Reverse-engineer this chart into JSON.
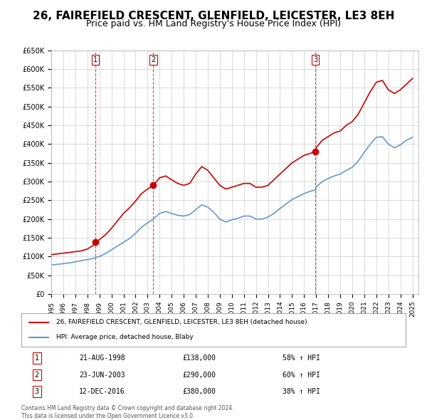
{
  "title": "26, FAIREFIELD CRESCENT, GLENFIELD, LEICESTER, LE3 8EH",
  "subtitle": "Price paid vs. HM Land Registry's House Price Index (HPI)",
  "title_fontsize": 11,
  "subtitle_fontsize": 9,
  "ylim": [
    0,
    650000
  ],
  "yticks": [
    0,
    50000,
    100000,
    150000,
    200000,
    250000,
    300000,
    350000,
    400000,
    450000,
    500000,
    550000,
    600000,
    650000
  ],
  "ytick_labels": [
    "£0",
    "£50K",
    "£100K",
    "£150K",
    "£200K",
    "£250K",
    "£300K",
    "£350K",
    "£400K",
    "£450K",
    "£500K",
    "£550K",
    "£600K",
    "£650K"
  ],
  "xlim_start": 1995.0,
  "xlim_end": 2025.5,
  "sale_color": "#cc0000",
  "hpi_color": "#6699cc",
  "sale_label": "26, FAIREFIELD CRESCENT, GLENFIELD, LEICESTER, LE3 8EH (detached house)",
  "hpi_label": "HPI: Average price, detached house, Blaby",
  "transactions": [
    {
      "date": 1998.64,
      "price": 138000,
      "label": "1"
    },
    {
      "date": 2003.48,
      "price": 290000,
      "label": "2"
    },
    {
      "date": 2016.95,
      "price": 380000,
      "label": "3"
    }
  ],
  "vline_dates": [
    1998.64,
    2003.48,
    2016.95
  ],
  "table_data": [
    [
      "1",
      "21-AUG-1998",
      "£138,000",
      "58% ↑ HPI"
    ],
    [
      "2",
      "23-JUN-2003",
      "£290,000",
      "60% ↑ HPI"
    ],
    [
      "3",
      "12-DEC-2016",
      "£380,000",
      "38% ↑ HPI"
    ]
  ],
  "footer": "Contains HM Land Registry data © Crown copyright and database right 2024.\nThis data is licensed under the Open Government Licence v3.0.",
  "background_color": "#ffffff",
  "grid_color": "#cccccc",
  "sale_line": {
    "x": [
      1995.0,
      1995.5,
      1996.0,
      1996.5,
      1997.0,
      1997.5,
      1998.0,
      1998.5,
      1998.64,
      1999.0,
      1999.5,
      2000.0,
      2000.5,
      2001.0,
      2001.5,
      2002.0,
      2002.5,
      2003.0,
      2003.48,
      2004.0,
      2004.5,
      2005.0,
      2005.5,
      2006.0,
      2006.5,
      2007.0,
      2007.5,
      2008.0,
      2008.5,
      2009.0,
      2009.5,
      2010.0,
      2010.5,
      2011.0,
      2011.5,
      2012.0,
      2012.5,
      2013.0,
      2013.5,
      2014.0,
      2014.5,
      2015.0,
      2015.5,
      2016.0,
      2016.5,
      2016.95,
      2017.0,
      2017.5,
      2018.0,
      2018.5,
      2019.0,
      2019.5,
      2020.0,
      2020.5,
      2021.0,
      2021.5,
      2022.0,
      2022.5,
      2023.0,
      2023.5,
      2024.0,
      2024.5,
      2025.0
    ],
    "y": [
      105000,
      107000,
      109000,
      111000,
      113000,
      115000,
      120000,
      130000,
      138000,
      145000,
      158000,
      175000,
      195000,
      215000,
      230000,
      248000,
      268000,
      280000,
      290000,
      310000,
      315000,
      305000,
      295000,
      290000,
      295000,
      320000,
      340000,
      330000,
      310000,
      290000,
      280000,
      285000,
      290000,
      295000,
      295000,
      285000,
      285000,
      290000,
      305000,
      320000,
      335000,
      350000,
      360000,
      370000,
      375000,
      380000,
      390000,
      410000,
      420000,
      430000,
      435000,
      450000,
      460000,
      480000,
      510000,
      540000,
      565000,
      570000,
      545000,
      535000,
      545000,
      560000,
      575000
    ]
  },
  "hpi_line": {
    "x": [
      1995.0,
      1995.5,
      1996.0,
      1996.5,
      1997.0,
      1997.5,
      1998.0,
      1998.5,
      1998.64,
      1999.0,
      1999.5,
      2000.0,
      2000.5,
      2001.0,
      2001.5,
      2002.0,
      2002.5,
      2003.0,
      2003.48,
      2004.0,
      2004.5,
      2005.0,
      2005.5,
      2006.0,
      2006.5,
      2007.0,
      2007.5,
      2008.0,
      2008.5,
      2009.0,
      2009.5,
      2010.0,
      2010.5,
      2011.0,
      2011.5,
      2012.0,
      2012.5,
      2013.0,
      2013.5,
      2014.0,
      2014.5,
      2015.0,
      2015.5,
      2016.0,
      2016.5,
      2016.95,
      2017.0,
      2017.5,
      2018.0,
      2018.5,
      2019.0,
      2019.5,
      2020.0,
      2020.5,
      2021.0,
      2021.5,
      2022.0,
      2022.5,
      2023.0,
      2023.5,
      2024.0,
      2024.5,
      2025.0
    ],
    "y": [
      78000,
      79000,
      81000,
      83000,
      86000,
      89000,
      92000,
      95000,
      97000,
      100000,
      108000,
      118000,
      128000,
      138000,
      148000,
      162000,
      178000,
      190000,
      200000,
      215000,
      220000,
      215000,
      210000,
      208000,
      212000,
      225000,
      238000,
      232000,
      218000,
      200000,
      192000,
      198000,
      202000,
      208000,
      208000,
      200000,
      200000,
      205000,
      215000,
      228000,
      240000,
      252000,
      260000,
      268000,
      274000,
      278000,
      285000,
      300000,
      308000,
      315000,
      320000,
      330000,
      338000,
      355000,
      378000,
      400000,
      418000,
      420000,
      400000,
      390000,
      398000,
      410000,
      418000
    ]
  }
}
